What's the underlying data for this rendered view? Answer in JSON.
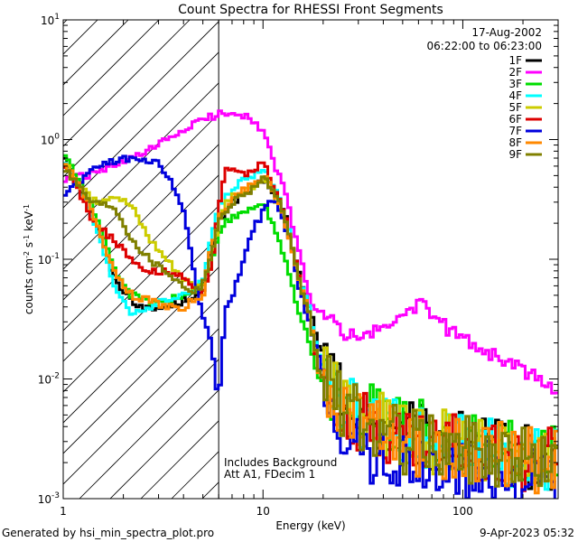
{
  "chart_data": {
    "type": "line",
    "title": "Count Spectra for RHESSI Front Segments",
    "xlabel": "Energy (keV)",
    "ylabel_parts": [
      "counts cm",
      "-2",
      " s",
      "-1",
      " keV",
      "-1"
    ],
    "xscale": "log",
    "yscale": "log",
    "xlim": [
      1,
      300
    ],
    "ylim": [
      0.001,
      10
    ],
    "x_ticks": [
      {
        "v": 1,
        "label": "1"
      },
      {
        "v": 10,
        "label": "10"
      },
      {
        "v": 100,
        "label": "100"
      }
    ],
    "y_ticks": [
      {
        "v": 0.001,
        "base": "10",
        "exp": "-3"
      },
      {
        "v": 0.01,
        "base": "10",
        "exp": "-2"
      },
      {
        "v": 0.1,
        "base": "10",
        "exp": "-1"
      },
      {
        "v": 1,
        "base": "10",
        "exp": "0"
      },
      {
        "v": 10,
        "base": "10",
        "exp": "1"
      }
    ],
    "hatched_region": {
      "x_from": 1,
      "x_to": 6.0
    },
    "header_lines": [
      "17-Aug-2002",
      "06:22:00 to 06:23:00"
    ],
    "notes": [
      "Includes Background",
      "Att A1, FDecim 1"
    ],
    "legend_position": "top-right",
    "series": [
      {
        "name": "1F",
        "color": "#000000",
        "x": [
          1.0,
          1.4,
          1.8,
          2.2,
          2.7,
          3.3,
          4.0,
          4.5,
          5.0,
          5.5,
          6.0,
          6.5,
          7.0,
          8.0,
          9.0,
          10.0,
          11.0,
          12.0,
          13.0,
          14.0,
          15.0,
          17.0,
          19.0,
          22.0,
          25.0,
          30.0,
          40.0,
          50.0,
          70.0,
          100.0,
          150.0,
          200.0,
          300.0
        ],
        "y": [
          0.75,
          0.25,
          0.07,
          0.045,
          0.038,
          0.04,
          0.045,
          0.05,
          0.05,
          0.12,
          0.2,
          0.25,
          0.3,
          0.35,
          0.38,
          0.45,
          0.4,
          0.3,
          0.22,
          0.12,
          0.08,
          0.04,
          0.02,
          0.01,
          0.007,
          0.005,
          0.004,
          0.0035,
          0.003,
          0.0028,
          0.0025,
          0.0022,
          0.002
        ]
      },
      {
        "name": "2F",
        "color": "#ff00ff",
        "x": [
          1.0,
          1.3,
          1.6,
          2.0,
          2.5,
          3.0,
          3.5,
          4.0,
          4.5,
          5.0,
          5.5,
          6.0,
          6.5,
          7.0,
          7.5,
          8.0,
          9.0,
          10.0,
          11.0,
          12.0,
          13.0,
          14.0,
          15.0,
          16.0,
          17.0,
          18.0,
          20.0,
          22.0,
          25.0,
          30.0,
          40.0,
          50.0,
          60.0,
          70.0,
          80.0,
          100.0,
          150.0,
          200.0,
          300.0
        ],
        "y": [
          0.45,
          0.5,
          0.55,
          0.65,
          0.75,
          0.9,
          1.05,
          1.2,
          1.35,
          1.45,
          1.55,
          1.62,
          1.68,
          1.7,
          1.68,
          1.6,
          1.45,
          1.15,
          0.75,
          0.5,
          0.35,
          0.2,
          0.12,
          0.08,
          0.05,
          0.04,
          0.035,
          0.03,
          0.025,
          0.022,
          0.026,
          0.035,
          0.042,
          0.035,
          0.028,
          0.022,
          0.015,
          0.012,
          0.0075
        ]
      },
      {
        "name": "3F",
        "color": "#00dd00",
        "x": [
          1.0,
          1.4,
          1.8,
          2.2,
          2.7,
          3.3,
          4.0,
          4.5,
          5.0,
          5.5,
          6.0,
          6.5,
          7.0,
          8.0,
          9.0,
          10.0,
          11.0,
          12.0,
          13.0,
          14.0,
          15.0,
          17.0,
          19.0,
          22.0,
          25.0,
          30.0,
          40.0,
          50.0,
          70.0,
          100.0,
          150.0,
          200.0,
          300.0
        ],
        "y": [
          0.8,
          0.28,
          0.08,
          0.05,
          0.045,
          0.045,
          0.05,
          0.055,
          0.06,
          0.09,
          0.15,
          0.2,
          0.22,
          0.25,
          0.28,
          0.3,
          0.2,
          0.15,
          0.1,
          0.06,
          0.04,
          0.02,
          0.01,
          0.008,
          0.006,
          0.005,
          0.0045,
          0.004,
          0.0035,
          0.003,
          0.0028,
          0.0025,
          0.0022
        ]
      },
      {
        "name": "4F",
        "color": "#00ffff",
        "x": [
          1.0,
          1.4,
          1.8,
          2.2,
          2.7,
          3.3,
          4.0,
          4.5,
          5.0,
          5.5,
          6.0,
          6.5,
          7.0,
          8.0,
          9.0,
          10.0,
          11.0,
          12.0,
          13.0,
          14.0,
          15.0,
          17.0,
          19.0,
          22.0,
          25.0,
          30.0,
          40.0,
          50.0,
          70.0,
          100.0,
          150.0,
          200.0,
          300.0
        ],
        "y": [
          0.7,
          0.22,
          0.06,
          0.035,
          0.04,
          0.045,
          0.05,
          0.055,
          0.065,
          0.15,
          0.28,
          0.33,
          0.38,
          0.45,
          0.5,
          0.55,
          0.45,
          0.32,
          0.22,
          0.13,
          0.08,
          0.04,
          0.015,
          0.009,
          0.006,
          0.005,
          0.004,
          0.0035,
          0.003,
          0.0028,
          0.0025,
          0.0022,
          0.002
        ]
      },
      {
        "name": "5F",
        "color": "#cccc00",
        "x": [
          1.0,
          1.4,
          1.8,
          2.2,
          2.7,
          3.3,
          4.0,
          4.5,
          5.0,
          5.5,
          6.0,
          6.5,
          7.0,
          8.0,
          9.0,
          10.0,
          11.0,
          12.0,
          13.0,
          14.0,
          15.0,
          17.0,
          19.0,
          22.0,
          25.0,
          30.0,
          40.0,
          50.0,
          70.0,
          100.0,
          150.0,
          200.0,
          300.0
        ],
        "y": [
          0.65,
          0.3,
          0.35,
          0.28,
          0.15,
          0.1,
          0.07,
          0.06,
          0.06,
          0.1,
          0.2,
          0.3,
          0.33,
          0.36,
          0.4,
          0.45,
          0.38,
          0.28,
          0.2,
          0.12,
          0.07,
          0.035,
          0.012,
          0.008,
          0.006,
          0.0045,
          0.004,
          0.0035,
          0.003,
          0.0028,
          0.0025,
          0.0022,
          0.002
        ]
      },
      {
        "name": "6F",
        "color": "#dd0000",
        "x": [
          1.0,
          1.4,
          1.8,
          2.2,
          2.7,
          3.3,
          4.0,
          4.5,
          5.0,
          5.5,
          6.0,
          6.5,
          7.0,
          8.0,
          9.0,
          10.0,
          11.0,
          12.0,
          13.0,
          14.0,
          15.0,
          17.0,
          19.0,
          22.0,
          25.0,
          30.0,
          40.0,
          50.0,
          70.0,
          100.0,
          150.0,
          200.0,
          300.0
        ],
        "y": [
          0.65,
          0.22,
          0.14,
          0.1,
          0.08,
          0.08,
          0.07,
          0.055,
          0.055,
          0.09,
          0.25,
          0.58,
          0.58,
          0.5,
          0.55,
          0.65,
          0.45,
          0.32,
          0.22,
          0.13,
          0.08,
          0.03,
          0.012,
          0.008,
          0.006,
          0.0045,
          0.0035,
          0.003,
          0.0028,
          0.0026,
          0.0024,
          0.0022,
          0.002
        ]
      },
      {
        "name": "7F",
        "color": "#0000dd",
        "x": [
          1.0,
          1.3,
          1.6,
          2.0,
          2.5,
          3.0,
          3.5,
          4.0,
          4.5,
          5.0,
          5.5,
          6.0,
          6.5,
          7.0,
          8.0,
          9.0,
          10.0,
          11.0,
          12.0,
          13.0,
          14.0,
          15.0,
          17.0,
          19.0,
          22.0,
          25.0,
          30.0,
          40.0,
          50.0,
          70.0,
          100.0,
          150.0,
          200.0,
          300.0
        ],
        "y": [
          0.35,
          0.5,
          0.65,
          0.68,
          0.7,
          0.62,
          0.45,
          0.25,
          0.08,
          0.035,
          0.02,
          0.006,
          0.04,
          0.05,
          0.1,
          0.18,
          0.25,
          0.3,
          0.28,
          0.18,
          0.12,
          0.06,
          0.03,
          0.015,
          0.007,
          0.004,
          0.0025,
          0.0022,
          0.0018,
          0.0018,
          0.0017,
          0.0016,
          0.0015,
          0.0014
        ]
      },
      {
        "name": "8F",
        "color": "#ff8800",
        "x": [
          1.0,
          1.4,
          1.8,
          2.2,
          2.7,
          3.3,
          4.0,
          4.5,
          5.0,
          5.5,
          6.0,
          6.5,
          7.0,
          8.0,
          9.0,
          10.0,
          11.0,
          12.0,
          13.0,
          14.0,
          15.0,
          17.0,
          19.0,
          22.0,
          25.0,
          30.0,
          40.0,
          50.0,
          70.0,
          100.0,
          150.0,
          200.0,
          300.0
        ],
        "y": [
          0.7,
          0.25,
          0.08,
          0.05,
          0.045,
          0.04,
          0.04,
          0.045,
          0.05,
          0.12,
          0.22,
          0.27,
          0.32,
          0.38,
          0.42,
          0.5,
          0.42,
          0.3,
          0.2,
          0.12,
          0.07,
          0.035,
          0.012,
          0.008,
          0.006,
          0.0045,
          0.0035,
          0.003,
          0.0028,
          0.0026,
          0.0024,
          0.0022,
          0.002
        ]
      },
      {
        "name": "9F",
        "color": "#808000",
        "x": [
          1.0,
          1.4,
          1.8,
          2.2,
          2.7,
          3.3,
          4.0,
          4.5,
          5.0,
          5.5,
          6.0,
          6.5,
          7.0,
          8.0,
          9.0,
          10.0,
          11.0,
          12.0,
          13.0,
          14.0,
          15.0,
          17.0,
          19.0,
          22.0,
          25.0,
          30.0,
          40.0,
          50.0,
          70.0,
          100.0,
          150.0,
          200.0,
          300.0
        ],
        "y": [
          0.6,
          0.3,
          0.28,
          0.15,
          0.1,
          0.08,
          0.06,
          0.055,
          0.06,
          0.11,
          0.2,
          0.26,
          0.3,
          0.35,
          0.4,
          0.48,
          0.4,
          0.3,
          0.2,
          0.12,
          0.07,
          0.035,
          0.012,
          0.008,
          0.006,
          0.0045,
          0.0035,
          0.003,
          0.0028,
          0.0026,
          0.0024,
          0.0022,
          0.002
        ]
      }
    ]
  },
  "footer": {
    "generated_by": "Generated by hsi_min_spectra_plot.pro",
    "date": "9-Apr-2023 05:32"
  }
}
